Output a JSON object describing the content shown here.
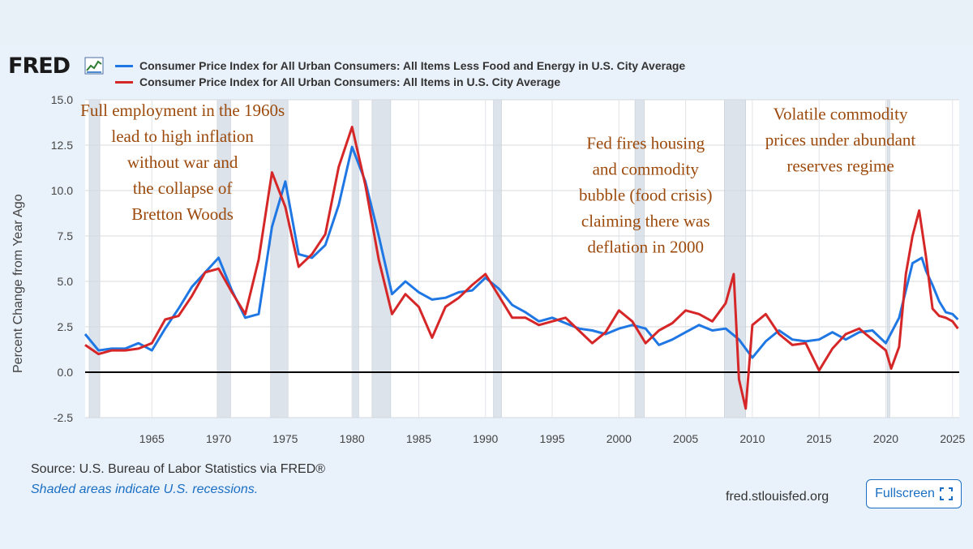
{
  "brand": {
    "logo_text": "FRED",
    "logo_mark": "chart-line-icon"
  },
  "legend": [
    {
      "label": "Consumer Price Index for All Urban Consumers: All Items Less Food and Energy in U.S. City Average",
      "color": "#1f77e4"
    },
    {
      "label": "Consumer Price Index for All Urban Consumers: All Items in U.S. City Average",
      "color": "#d62728"
    }
  ],
  "footer": {
    "source": "Source: U.S. Bureau of Labor Statistics via FRED®",
    "note": "Shaded areas indicate U.S. recessions.",
    "url": "fred.stlouisfed.org",
    "fullscreen_label": "Fullscreen",
    "fullscreen_icon": "expand-icon"
  },
  "chart_data": {
    "type": "line",
    "xlim": [
      1960,
      2025.5
    ],
    "ylim": [
      -2.5,
      15.0
    ],
    "ylabel": "Percent Change from Year Ago",
    "yticks": [
      15.0,
      12.5,
      10.0,
      7.5,
      5.0,
      2.5,
      0.0,
      -2.5
    ],
    "ytick_labels": [
      "15.0",
      "12.5",
      "10.0",
      "7.5",
      "5.0",
      "2.5",
      "0.0",
      "-2.5"
    ],
    "xticks": [
      1965,
      1970,
      1975,
      1980,
      1985,
      1990,
      1995,
      2000,
      2005,
      2010,
      2015,
      2020,
      2025
    ],
    "xtick_labels": [
      "1965",
      "1970",
      "1975",
      "1980",
      "1985",
      "1990",
      "1995",
      "2000",
      "2005",
      "2010",
      "2015",
      "2020",
      "2025"
    ],
    "grid": true,
    "zero_line": true,
    "recessions": [
      [
        1960.3,
        1961.1
      ],
      [
        1969.9,
        1970.9
      ],
      [
        1973.9,
        1975.2
      ],
      [
        1980.0,
        1980.5
      ],
      [
        1981.5,
        1982.9
      ],
      [
        1990.6,
        1991.2
      ],
      [
        2001.2,
        2001.9
      ],
      [
        2007.9,
        2009.5
      ],
      [
        2020.1,
        2020.3
      ]
    ],
    "series": [
      {
        "name": "Consumer Price Index for All Urban Consumers: All Items Less Food and Energy in U.S. City Average",
        "color": "#1f77e4",
        "x": [
          1960.0,
          1961.0,
          1962.0,
          1963.0,
          1964.0,
          1965.0,
          1966.0,
          1967.0,
          1968.0,
          1969.0,
          1970.0,
          1971.0,
          1972.0,
          1973.0,
          1974.0,
          1975.0,
          1976.0,
          1977.0,
          1978.0,
          1979.0,
          1980.0,
          1981.0,
          1982.0,
          1983.0,
          1984.0,
          1985.0,
          1986.0,
          1987.0,
          1988.0,
          1989.0,
          1990.0,
          1991.0,
          1992.0,
          1993.0,
          1994.0,
          1995.0,
          1996.0,
          1997.0,
          1998.0,
          1999.0,
          2000.0,
          2001.0,
          2002.0,
          2003.0,
          2004.0,
          2005.0,
          2006.0,
          2007.0,
          2008.0,
          2009.0,
          2010.0,
          2011.0,
          2012.0,
          2013.0,
          2014.0,
          2015.0,
          2016.0,
          2017.0,
          2018.0,
          2019.0,
          2020.0,
          2021.0,
          2021.5,
          2022.0,
          2022.7,
          2023.0,
          2023.5,
          2024.0,
          2024.5,
          2025.0,
          2025.4
        ],
        "values": [
          2.1,
          1.2,
          1.3,
          1.3,
          1.6,
          1.2,
          2.4,
          3.5,
          4.7,
          5.5,
          6.3,
          4.5,
          3.0,
          3.2,
          8.0,
          10.5,
          6.5,
          6.3,
          7.0,
          9.2,
          12.4,
          10.5,
          7.5,
          4.3,
          5.0,
          4.4,
          4.0,
          4.1,
          4.4,
          4.5,
          5.2,
          4.6,
          3.7,
          3.3,
          2.8,
          3.0,
          2.7,
          2.4,
          2.3,
          2.1,
          2.4,
          2.6,
          2.4,
          1.5,
          1.8,
          2.2,
          2.6,
          2.3,
          2.4,
          1.8,
          0.8,
          1.7,
          2.3,
          1.8,
          1.7,
          1.8,
          2.2,
          1.8,
          2.2,
          2.3,
          1.6,
          3.0,
          4.5,
          6.0,
          6.3,
          5.6,
          4.8,
          3.9,
          3.3,
          3.2,
          2.9
        ]
      },
      {
        "name": "Consumer Price Index for All Urban Consumers: All Items in U.S. City Average",
        "color": "#d62728",
        "x": [
          1960.0,
          1961.0,
          1962.0,
          1963.0,
          1964.0,
          1965.0,
          1966.0,
          1967.0,
          1968.0,
          1969.0,
          1970.0,
          1971.0,
          1972.0,
          1973.0,
          1974.0,
          1975.0,
          1976.0,
          1977.0,
          1978.0,
          1979.0,
          1980.0,
          1981.0,
          1982.0,
          1983.0,
          1984.0,
          1985.0,
          1986.0,
          1987.0,
          1988.0,
          1989.0,
          1990.0,
          1991.0,
          1992.0,
          1993.0,
          1994.0,
          1995.0,
          1996.0,
          1997.0,
          1998.0,
          1999.0,
          2000.0,
          2001.0,
          2002.0,
          2003.0,
          2004.0,
          2005.0,
          2006.0,
          2007.0,
          2008.0,
          2008.6,
          2009.0,
          2009.5,
          2010.0,
          2011.0,
          2012.0,
          2013.0,
          2014.0,
          2015.0,
          2016.0,
          2017.0,
          2018.0,
          2019.0,
          2020.0,
          2020.4,
          2021.0,
          2021.5,
          2022.0,
          2022.5,
          2023.0,
          2023.5,
          2024.0,
          2024.5,
          2025.0,
          2025.4
        ],
        "values": [
          1.5,
          1.0,
          1.2,
          1.2,
          1.3,
          1.6,
          2.9,
          3.1,
          4.2,
          5.5,
          5.7,
          4.4,
          3.2,
          6.2,
          11.0,
          9.1,
          5.8,
          6.5,
          7.6,
          11.3,
          13.5,
          10.3,
          6.2,
          3.2,
          4.3,
          3.6,
          1.9,
          3.6,
          4.1,
          4.8,
          5.4,
          4.2,
          3.0,
          3.0,
          2.6,
          2.8,
          3.0,
          2.3,
          1.6,
          2.2,
          3.4,
          2.8,
          1.6,
          2.3,
          2.7,
          3.4,
          3.2,
          2.8,
          3.8,
          5.4,
          -0.4,
          -2.0,
          2.6,
          3.2,
          2.1,
          1.5,
          1.6,
          0.1,
          1.3,
          2.1,
          2.4,
          1.8,
          1.2,
          0.2,
          1.4,
          5.4,
          7.5,
          8.9,
          6.4,
          3.5,
          3.1,
          3.0,
          2.8,
          2.4
        ]
      }
    ],
    "annotations": [
      {
        "lines": [
          "Full employment in the 1960s",
          "lead to high inflation",
          "without war and",
          "the collapse of",
          "Bretton Woods"
        ],
        "x": 1967.3,
        "y": 14.1
      },
      {
        "lines": [
          "Fed fires housing",
          "and commodity",
          "bubble (food crisis)",
          "claiming there was",
          "deflation in 2000"
        ],
        "x": 2002.0,
        "y": 12.3
      },
      {
        "lines": [
          "Volatile commodity",
          "prices under abundant",
          "reserves regime"
        ],
        "x": 2016.6,
        "y": 13.9
      }
    ],
    "annotation_color": "#9c4a0c"
  }
}
